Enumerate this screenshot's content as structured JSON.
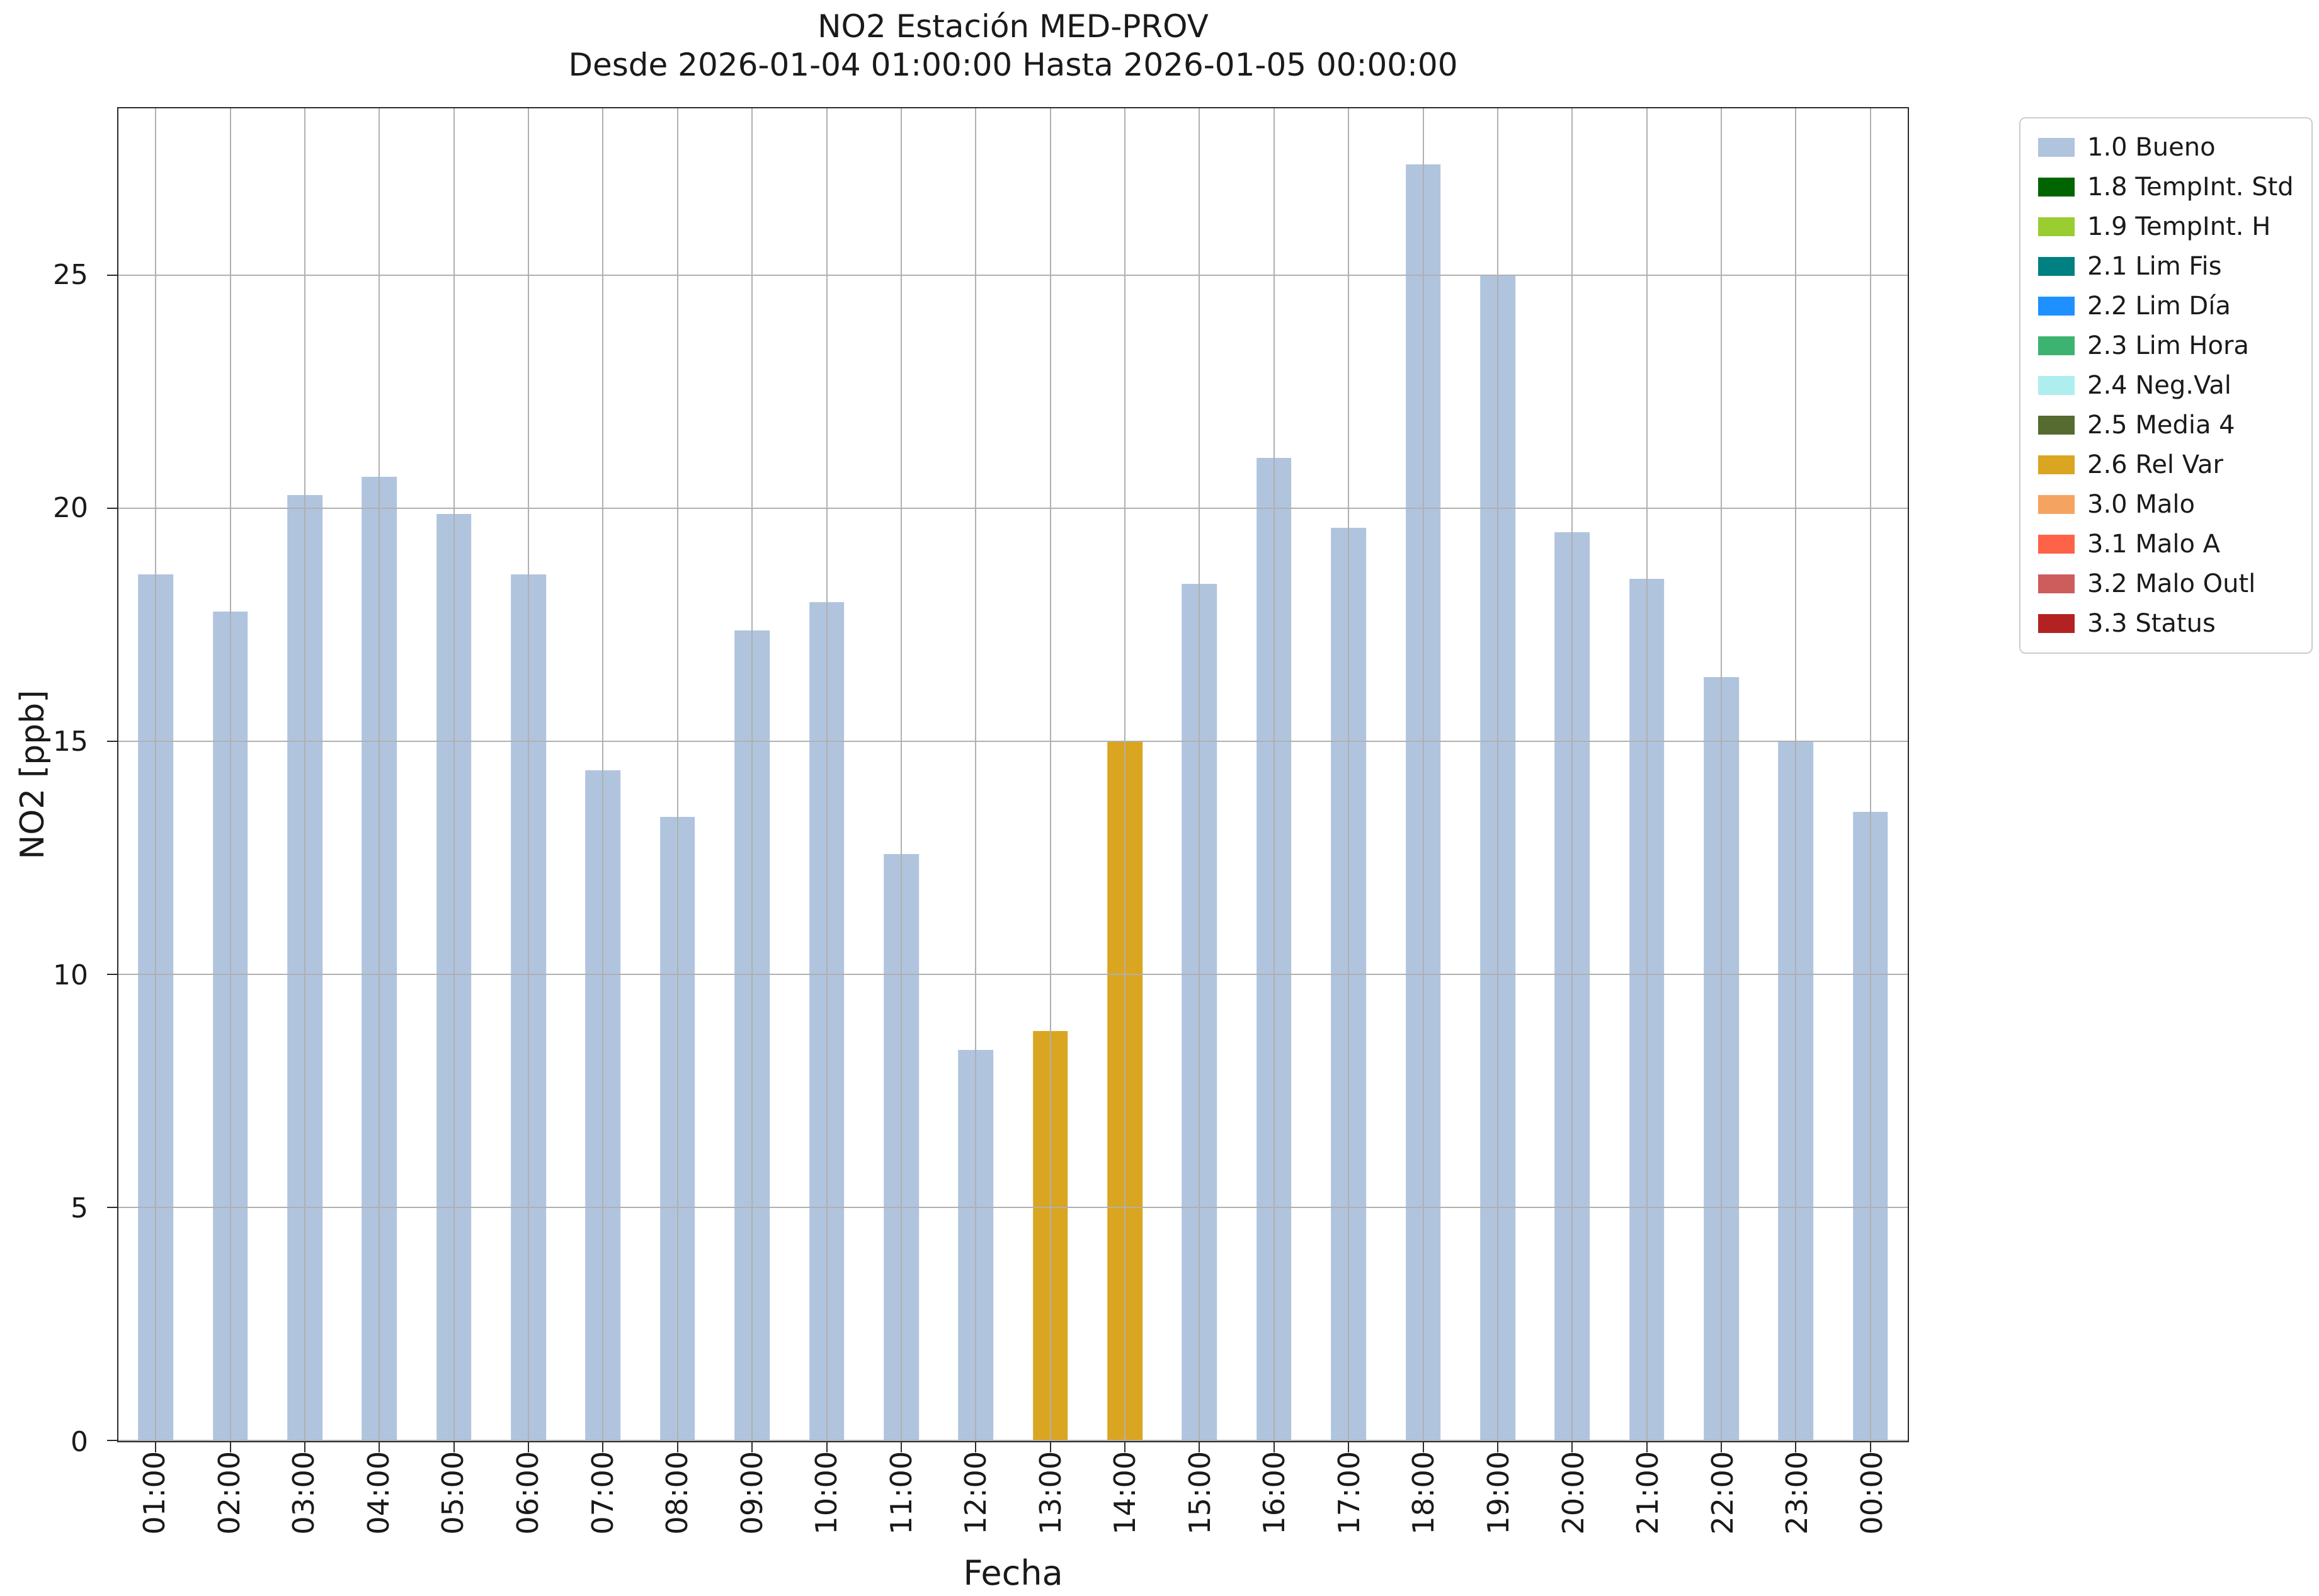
{
  "chart_data": {
    "type": "bar",
    "title": "NO2 Estación MED-PROV",
    "subtitle": "Desde 2026-01-04 01:00:00 Hasta 2026-01-05 00:00:00",
    "xlabel": "Fecha",
    "ylabel": "NO2 [ppb]",
    "ylim": [
      0,
      28.6
    ],
    "yticks": [
      0,
      5,
      10,
      15,
      20,
      25
    ],
    "grid": true,
    "legend_position": "outside-upper-right",
    "categories": [
      "01:00",
      "02:00",
      "03:00",
      "04:00",
      "05:00",
      "06:00",
      "07:00",
      "08:00",
      "09:00",
      "10:00",
      "11:00",
      "12:00",
      "13:00",
      "14:00",
      "15:00",
      "16:00",
      "17:00",
      "18:00",
      "19:00",
      "20:00",
      "21:00",
      "22:00",
      "23:00",
      "00:00"
    ],
    "values": [
      18.6,
      17.8,
      20.3,
      20.7,
      19.9,
      18.6,
      14.4,
      13.4,
      17.4,
      18.0,
      12.6,
      8.4,
      8.8,
      15.0,
      18.4,
      21.1,
      19.6,
      27.4,
      25.0,
      19.5,
      18.5,
      16.4,
      15.0,
      13.5
    ],
    "bar_status": [
      "1.0",
      "1.0",
      "1.0",
      "1.0",
      "1.0",
      "1.0",
      "1.0",
      "1.0",
      "1.0",
      "1.0",
      "1.0",
      "1.0",
      "2.6",
      "2.6",
      "1.0",
      "1.0",
      "1.0",
      "1.0",
      "1.0",
      "1.0",
      "1.0",
      "1.0",
      "1.0",
      "1.0"
    ],
    "status_colors": {
      "1.0": "#B0C4DE",
      "1.8": "#006400",
      "1.9": "#9ACD32",
      "2.1": "#008080",
      "2.2": "#1E90FF",
      "2.3": "#3CB371",
      "2.4": "#AFEEEE",
      "2.5": "#556B2F",
      "2.6": "#DAA520",
      "3.0": "#F4A460",
      "3.1": "#FF6347",
      "3.2": "#CD5C5C",
      "3.3": "#B22222"
    },
    "legend_entries": [
      {
        "label": "1.0 Bueno",
        "color": "#B0C4DE"
      },
      {
        "label": "1.8 TempInt. Std",
        "color": "#006400"
      },
      {
        "label": "1.9 TempInt. H",
        "color": "#9ACD32"
      },
      {
        "label": "2.1 Lim Fis",
        "color": "#008080"
      },
      {
        "label": "2.2 Lim Día",
        "color": "#1E90FF"
      },
      {
        "label": "2.3 Lim Hora",
        "color": "#3CB371"
      },
      {
        "label": "2.4 Neg.Val",
        "color": "#AFEEEE"
      },
      {
        "label": "2.5 Media 4",
        "color": "#556B2F"
      },
      {
        "label": "2.6 Rel Var",
        "color": "#DAA520"
      },
      {
        "label": "3.0 Malo",
        "color": "#F4A460"
      },
      {
        "label": "3.1 Malo A",
        "color": "#FF6347"
      },
      {
        "label": "3.2 Malo Outl",
        "color": "#CD5C5C"
      },
      {
        "label": "3.3 Status",
        "color": "#B22222"
      }
    ]
  }
}
